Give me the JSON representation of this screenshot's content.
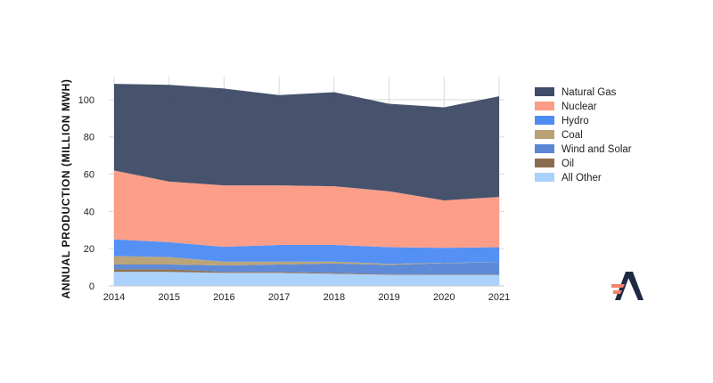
{
  "chart_data": {
    "type": "area",
    "stacked": true,
    "title": "",
    "xlabel": "",
    "ylabel": "ANNUAL PRODUCTION (MILLION MWH)",
    "x": [
      2014,
      2015,
      2016,
      2017,
      2018,
      2019,
      2020,
      2021
    ],
    "ylim": [
      0,
      110
    ],
    "yticks": [
      0,
      20,
      40,
      60,
      80,
      100
    ],
    "grid": true,
    "legend_position": "right",
    "series": [
      {
        "name": "All Other",
        "color": "#a8d1fc",
        "values": [
          7.5,
          7.5,
          7,
          7,
          6.5,
          6,
          6,
          6
        ]
      },
      {
        "name": "Oil",
        "color": "#8a6d4f",
        "values": [
          1.5,
          1.5,
          0.5,
          0.5,
          0.5,
          0.3,
          0.2,
          0.2
        ]
      },
      {
        "name": "Wind and Solar",
        "color": "#5a86d6",
        "values": [
          2.5,
          2.5,
          3.5,
          4,
          5,
          5,
          6,
          6.5
        ]
      },
      {
        "name": "Coal",
        "color": "#b9a175",
        "values": [
          4.5,
          4,
          2,
          1.5,
          1,
          0.5,
          0.2,
          0.1
        ]
      },
      {
        "name": "Hydro",
        "color": "#4f8df5",
        "values": [
          9,
          8,
          8,
          9,
          9,
          9,
          8,
          8
        ]
      },
      {
        "name": "Nuclear",
        "color": "#fd9c84",
        "values": [
          37,
          32.5,
          33,
          32,
          31.5,
          30,
          25.5,
          27
        ]
      },
      {
        "name": "Natural Gas",
        "color": "#414d68",
        "values": [
          46.5,
          52,
          52,
          48.5,
          50.5,
          47,
          50,
          54
        ]
      }
    ],
    "legend_order": [
      "Natural Gas",
      "Nuclear",
      "Hydro",
      "Coal",
      "Wind and Solar",
      "Oil",
      "All Other"
    ]
  },
  "logo": {
    "name": "brand-logo",
    "colors": [
      "#1e2a44",
      "#f4826b"
    ]
  }
}
